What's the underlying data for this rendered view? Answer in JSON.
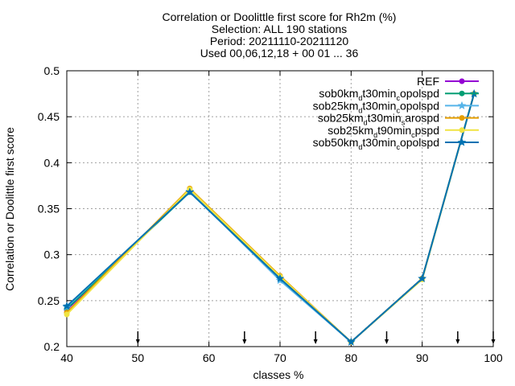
{
  "chart_data": {
    "type": "line",
    "title_lines": [
      "Correlation or Doolittle first score  for Rh2m (%)",
      "Selection: ALL    190 stations",
      "Period: 20211110-20211120",
      "Used 00,06,12,18 + 00 01 ... 36"
    ],
    "xlabel": "classes %",
    "ylabel": "Correlation or Doolittle first score",
    "xlim": [
      40,
      100
    ],
    "ylim": [
      0.2,
      0.5
    ],
    "xticks": [
      40,
      50,
      60,
      70,
      80,
      90,
      100
    ],
    "yticks": [
      0.2,
      0.25,
      0.3,
      0.35,
      0.4,
      0.45,
      0.5
    ],
    "ytick_labels": [
      "0.2",
      "0.25",
      "0.3",
      "0.35",
      "0.4",
      "0.45",
      "0.5"
    ],
    "grid": true,
    "legend_position": "top-right",
    "class_markers_x": [
      50,
      65,
      75,
      85,
      95,
      100
    ],
    "series": [
      {
        "name": "REF",
        "legend_parts": [
          [
            "REF",
            ""
          ]
        ],
        "color": "#9400d3",
        "marker": "filled-circle",
        "x": [
          40,
          57.3,
          70,
          80,
          90,
          97.3
        ],
        "y": [
          0.24,
          0.369,
          0.275,
          0.205,
          0.274,
          0.475
        ]
      },
      {
        "name": "sob0km_dt30min_copolspd",
        "legend_parts": [
          [
            "sob0km",
            ""
          ],
          [
            "d",
            "sub"
          ],
          [
            "t30min",
            ""
          ],
          [
            "c",
            "sub"
          ],
          [
            "opolspd",
            ""
          ]
        ],
        "color": "#009e73",
        "marker": "filled-circle",
        "x": [
          40,
          57.3,
          70,
          80,
          90,
          97.3
        ],
        "y": [
          0.241,
          0.368,
          0.276,
          0.205,
          0.274,
          0.475
        ]
      },
      {
        "name": "sob25km_dt30min_copolspd",
        "legend_parts": [
          [
            "sob25km",
            ""
          ],
          [
            "d",
            "sub"
          ],
          [
            "t30min",
            ""
          ],
          [
            "c",
            "sub"
          ],
          [
            "opolspd",
            ""
          ]
        ],
        "color": "#56b4e9",
        "marker": "star",
        "x": [
          40,
          57.3,
          70,
          80,
          90,
          97.3
        ],
        "y": [
          0.243,
          0.369,
          0.272,
          0.205,
          0.274,
          0.475
        ]
      },
      {
        "name": "sob25km_dt30min_sarospd",
        "legend_parts": [
          [
            "sob25km",
            ""
          ],
          [
            "d",
            "sub"
          ],
          [
            "t30min",
            ""
          ],
          [
            "s",
            "sub"
          ],
          [
            "arospd",
            ""
          ]
        ],
        "color": "#e69f00",
        "marker": "filled-circle",
        "x": [
          40,
          57.3,
          70,
          80,
          90,
          97.3
        ],
        "y": [
          0.237,
          0.372,
          0.277,
          0.205,
          0.274,
          0.475
        ]
      },
      {
        "name": "sob25km_dt90min_cpspd",
        "legend_parts": [
          [
            "sob25km",
            ""
          ],
          [
            "d",
            "sub"
          ],
          [
            "t90min",
            ""
          ],
          [
            "c",
            "sub"
          ],
          [
            "pspd",
            ""
          ]
        ],
        "color": "#f0e442",
        "marker": "filled-circle",
        "x": [
          40,
          57.3,
          70,
          80,
          90,
          97.3
        ],
        "y": [
          0.235,
          0.371,
          0.276,
          0.205,
          0.273,
          0.475
        ]
      },
      {
        "name": "sob50km_dt30min_copolspd",
        "legend_parts": [
          [
            "sob50km",
            ""
          ],
          [
            "d",
            "sub"
          ],
          [
            "t30min",
            ""
          ],
          [
            "c",
            "sub"
          ],
          [
            "opolspd",
            ""
          ]
        ],
        "color": "#0072b2",
        "marker": "star",
        "x": [
          40,
          57.3,
          70,
          80,
          90,
          97.3
        ],
        "y": [
          0.244,
          0.368,
          0.274,
          0.205,
          0.274,
          0.475
        ]
      }
    ]
  }
}
